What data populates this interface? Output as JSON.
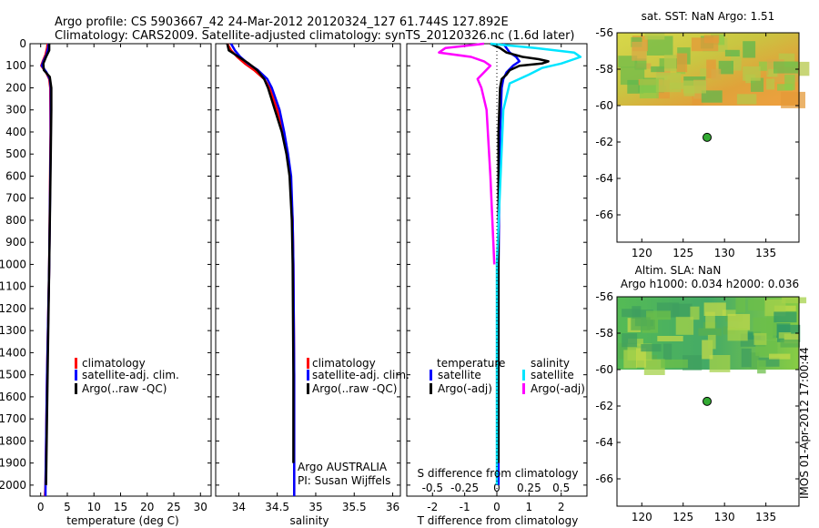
{
  "header": {
    "line1": "Argo profile: CS 5903667_42 24-Mar-2012 20120324_127 61.744S 127.892E",
    "line2": "Climatology: CARS2009. Satellite-adjusted climatology: synTS_20120326.nc (1.6d later)"
  },
  "colors": {
    "climatology": "#ff0000",
    "satellite": "#0000ff",
    "argo": "#000000",
    "sal_satellite": "#00e5ff",
    "sal_argo": "#ff00ff",
    "marker": "#33aa33"
  },
  "chart_data": [
    {
      "type": "line",
      "name": "temperature-profile",
      "xlabel": "temperature (deg C)",
      "ylabel": "",
      "xlim": [
        -2,
        32
      ],
      "ylim": [
        2050,
        0
      ],
      "xticks": [
        0,
        5,
        10,
        15,
        20,
        25,
        30
      ],
      "yticks": [
        0,
        100,
        200,
        300,
        400,
        500,
        600,
        700,
        800,
        900,
        1000,
        1100,
        1200,
        1300,
        1400,
        1500,
        1600,
        1700,
        1800,
        1900,
        2000
      ],
      "legend": [
        "climatology",
        "satellite-adj. clim.",
        "Argo(..raw -QC)"
      ],
      "series": [
        {
          "name": "climatology",
          "depth": [
            0,
            20,
            50,
            80,
            100,
            130,
            160,
            200,
            400,
            1000,
            1500,
            2000,
            2050
          ],
          "values": [
            1.3,
            1.2,
            0.9,
            0.4,
            0.1,
            1.0,
            1.6,
            1.8,
            1.85,
            1.6,
            1.2,
            0.9,
            0.8
          ]
        },
        {
          "name": "satellite-adj. clim.",
          "depth": [
            0,
            20,
            50,
            80,
            100,
            130,
            160,
            200,
            400,
            1000,
            1500,
            2000,
            2050
          ],
          "values": [
            1.5,
            1.4,
            1.1,
            0.5,
            0.2,
            1.1,
            1.7,
            1.9,
            1.9,
            1.6,
            1.2,
            0.9,
            0.9
          ]
        },
        {
          "name": "Argo(..raw -QC)",
          "depth": [
            0,
            30,
            60,
            90,
            120,
            150,
            200,
            300,
            500,
            1000,
            1500,
            2000
          ],
          "values": [
            1.6,
            1.6,
            1.0,
            0.5,
            0.6,
            1.7,
            2.0,
            2.0,
            1.9,
            1.6,
            1.3,
            1.0
          ]
        }
      ]
    },
    {
      "type": "line",
      "name": "salinity-profile",
      "xlabel": "salinity",
      "xlim": [
        33.7,
        36.1
      ],
      "ylim": [
        2050,
        0
      ],
      "xticks": [
        34,
        34.5,
        35,
        35.5,
        36
      ],
      "xticklabels": [
        "34",
        "34.5",
        "35",
        "35.5",
        "36"
      ],
      "legend": [
        "climatology",
        "satellite-adj. clim.",
        "Argo(..raw -QC)"
      ],
      "annotation": [
        "Argo AUSTRALIA",
        "PI: Susan Wijffels"
      ],
      "series": [
        {
          "name": "climatology",
          "depth": [
            0,
            30,
            60,
            90,
            120,
            160,
            200,
            300,
            400,
            500,
            600,
            800,
            1000,
            1500,
            2000,
            2050
          ],
          "values": [
            33.85,
            33.9,
            33.98,
            34.08,
            34.2,
            34.33,
            34.4,
            34.5,
            34.57,
            34.63,
            34.67,
            34.7,
            34.71,
            34.72,
            34.72,
            34.72
          ]
        },
        {
          "name": "satellite-adj. clim.",
          "depth": [
            0,
            30,
            60,
            90,
            120,
            160,
            200,
            300,
            400,
            500,
            600,
            800,
            1000,
            1500,
            2000,
            2050
          ],
          "values": [
            33.9,
            33.95,
            34.02,
            34.12,
            34.25,
            34.37,
            34.43,
            34.53,
            34.59,
            34.64,
            34.68,
            34.7,
            34.71,
            34.72,
            34.72,
            34.72
          ]
        },
        {
          "name": "Argo(..raw -QC)",
          "depth": [
            0,
            30,
            60,
            90,
            120,
            160,
            200,
            300,
            400,
            500,
            600,
            800,
            1000,
            1500,
            1900
          ],
          "values": [
            33.85,
            33.87,
            34.0,
            34.13,
            34.24,
            34.33,
            34.38,
            34.47,
            34.56,
            34.62,
            34.66,
            34.69,
            34.7,
            34.71,
            34.71
          ]
        }
      ]
    },
    {
      "type": "line",
      "name": "difference-profile",
      "xlabel": "T difference from climatology",
      "xlabel2": "S difference from climatology",
      "xlim": [
        -2.8,
        2.8
      ],
      "ylim": [
        2050,
        0
      ],
      "xticks": [
        -2,
        -1,
        0,
        1,
        2
      ],
      "xticks_s": [
        -0.5,
        -0.25,
        0,
        0.25,
        0.5
      ],
      "xticklabels_s": [
        "-0.5",
        "-0.25",
        "0",
        "0.25",
        "0.5"
      ],
      "legend_temperature": {
        "title": "temperature",
        "items": [
          "satellite",
          "Argo(-adj)"
        ]
      },
      "legend_salinity": {
        "title": "salinity",
        "items": [
          "satellite",
          "Argo(-adj)"
        ]
      },
      "series": [
        {
          "name": "temperature satellite",
          "depth": [
            0,
            20,
            40,
            60,
            80,
            100,
            130,
            160,
            200,
            400,
            1000,
            2000
          ],
          "values": [
            0.2,
            0.3,
            0.4,
            0.6,
            0.7,
            0.5,
            0.3,
            0.2,
            0.15,
            0.1,
            0.05,
            0.05
          ]
        },
        {
          "name": "temperature Argo(-adj)",
          "depth": [
            0,
            20,
            40,
            60,
            70,
            80,
            90,
            100,
            120,
            140,
            160,
            200,
            400,
            1000,
            1500,
            1900
          ],
          "values": [
            -0.2,
            0.1,
            0.3,
            0.8,
            1.3,
            1.6,
            1.4,
            0.7,
            0.4,
            0.3,
            0.15,
            0.1,
            0.05,
            0.05,
            0.05,
            0.05
          ]
        },
        {
          "name": "salinity satellite",
          "depth": [
            0,
            20,
            40,
            60,
            70,
            90,
            110,
            140,
            180,
            300,
            1000,
            2000
          ],
          "values": [
            -0.05,
            0.3,
            0.6,
            0.65,
            0.6,
            0.5,
            0.35,
            0.25,
            0.1,
            0.05,
            0.0,
            0.0
          ]
        },
        {
          "name": "salinity Argo(-adj)",
          "depth": [
            0,
            20,
            40,
            60,
            80,
            100,
            130,
            160,
            200,
            300,
            600,
            1000
          ],
          "values": [
            -0.1,
            -0.4,
            -0.45,
            -0.2,
            -0.1,
            -0.05,
            -0.1,
            -0.15,
            -0.12,
            -0.08,
            -0.05,
            -0.02
          ]
        }
      ]
    },
    {
      "type": "heatmap",
      "name": "sst-map",
      "title": "sat. SST: NaN Argo: 1.51",
      "xlim": [
        117,
        139
      ],
      "ylim": [
        -67.5,
        -56
      ],
      "xticks": [
        120,
        125,
        130,
        135
      ],
      "yticks": [
        -56,
        -58,
        -60,
        -62,
        -64,
        -66
      ],
      "data_extent_lat": [
        -60,
        -56
      ],
      "argo_position": {
        "lon": 127.892,
        "lat": -61.744
      }
    },
    {
      "type": "heatmap",
      "name": "sla-map",
      "title": "Altim. SLA: NaN",
      "subtitle": "Argo h1000: 0.034 h2000: 0.036",
      "xlim": [
        117,
        139
      ],
      "ylim": [
        -67.5,
        -56
      ],
      "xticks": [
        120,
        125,
        130,
        135
      ],
      "yticks": [
        -56,
        -58,
        -60,
        -62,
        -64,
        -66
      ],
      "data_extent_lat": [
        -60,
        -56
      ],
      "argo_position": {
        "lon": 127.892,
        "lat": -61.744
      }
    }
  ],
  "footer": {
    "watermark": "IMOS 01-Apr-2012 17:00:44"
  }
}
